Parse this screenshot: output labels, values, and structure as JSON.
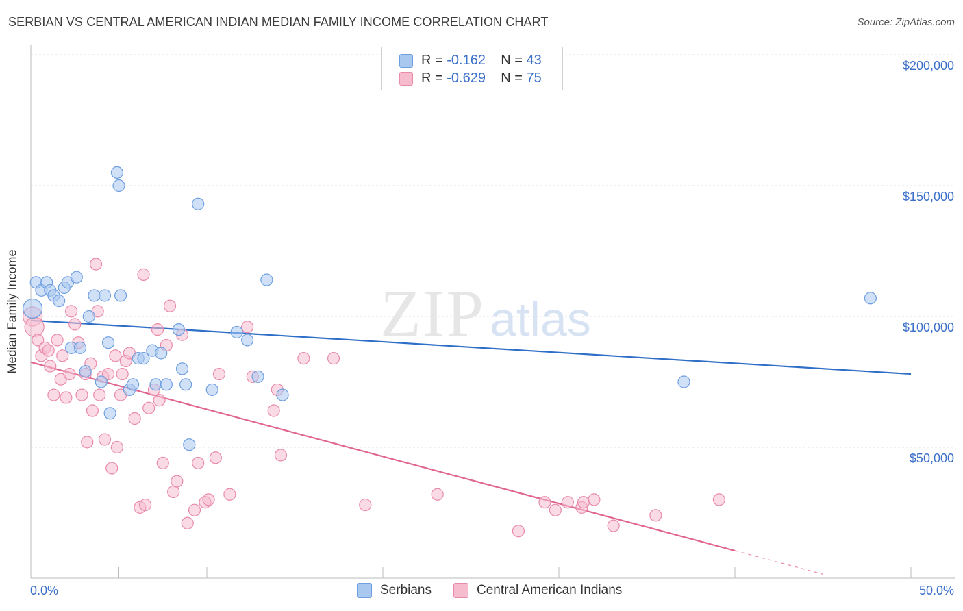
{
  "title": "SERBIAN VS CENTRAL AMERICAN INDIAN MEDIAN FAMILY INCOME CORRELATION CHART",
  "source": "Source: ZipAtlas.com",
  "watermark": {
    "zip": "ZIP",
    "atlas": "atlas"
  },
  "colors": {
    "blue_fill": "#a9c8f0",
    "blue_stroke": "#6f9fe0",
    "blue_line": "#2f6fc8",
    "pink_fill": "#f6bccd",
    "pink_stroke": "#e98aa8",
    "pink_line": "#e06690",
    "label_blue": "#3b6fc9"
  },
  "legend_top": {
    "rows": [
      {
        "r_label": "R =",
        "r_value": "-0.162",
        "n_label": "N =",
        "n_value": "43"
      },
      {
        "r_label": "R =",
        "r_value": "-0.629",
        "n_label": "N =",
        "n_value": "75"
      }
    ]
  },
  "legend_bottom": {
    "serbians": "Serbians",
    "central_american_indians": "Central American Indians"
  },
  "chart_data": {
    "type": "scatter",
    "title": "SERBIAN VS CENTRAL AMERICAN INDIAN MEDIAN FAMILY INCOME CORRELATION CHART",
    "ylabel": "Median Family Income",
    "xlabel": "",
    "xlim": [
      0,
      50
    ],
    "ylim": [
      0,
      200000
    ],
    "x_tick_labels": [
      "0.0%",
      "50.0%"
    ],
    "y_tick_labels": [
      "$50,000",
      "$100,000",
      "$150,000",
      "$200,000"
    ],
    "y_ticks": [
      50000,
      100000,
      150000,
      200000
    ],
    "grid": true,
    "series": [
      {
        "name": "Serbians",
        "color": "#6f9fe0",
        "trend": {
          "x": [
            0,
            50
          ],
          "y": [
            98500,
            78000
          ]
        },
        "points": [
          [
            0.1,
            103000
          ],
          [
            0.3,
            113000
          ],
          [
            0.6,
            110000
          ],
          [
            0.9,
            113000
          ],
          [
            1.1,
            110000
          ],
          [
            1.3,
            108000
          ],
          [
            1.6,
            106000
          ],
          [
            1.9,
            111000
          ],
          [
            2.1,
            113000
          ],
          [
            2.6,
            115000
          ],
          [
            2.3,
            88000
          ],
          [
            2.8,
            88000
          ],
          [
            3.1,
            79000
          ],
          [
            3.3,
            100000
          ],
          [
            3.6,
            108000
          ],
          [
            4.0,
            75000
          ],
          [
            4.2,
            108000
          ],
          [
            4.4,
            90000
          ],
          [
            4.5,
            63000
          ],
          [
            4.9,
            155000
          ],
          [
            5.0,
            150000
          ],
          [
            5.1,
            108000
          ],
          [
            5.6,
            72000
          ],
          [
            5.8,
            74000
          ],
          [
            6.1,
            84000
          ],
          [
            6.4,
            84000
          ],
          [
            6.9,
            87000
          ],
          [
            7.1,
            74000
          ],
          [
            7.4,
            86000
          ],
          [
            7.7,
            74000
          ],
          [
            8.4,
            95000
          ],
          [
            8.6,
            80000
          ],
          [
            8.8,
            74000
          ],
          [
            9.0,
            51000
          ],
          [
            9.5,
            143000
          ],
          [
            10.3,
            72000
          ],
          [
            11.7,
            94000
          ],
          [
            12.3,
            91000
          ],
          [
            12.9,
            77000
          ],
          [
            13.4,
            114000
          ],
          [
            14.3,
            70000
          ],
          [
            47.7,
            107000
          ],
          [
            37.1,
            75000
          ]
        ]
      },
      {
        "name": "Central American Indians",
        "color": "#e98aa8",
        "trend": {
          "x": [
            0,
            40
          ],
          "y": [
            82500,
            10500
          ]
        },
        "trend_dashed": {
          "x": [
            40,
            45
          ],
          "y": [
            10500,
            1500
          ]
        },
        "points": [
          [
            0.1,
            100000
          ],
          [
            0.2,
            96000
          ],
          [
            0.4,
            91000
          ],
          [
            0.6,
            85000
          ],
          [
            0.8,
            88000
          ],
          [
            1.0,
            87000
          ],
          [
            1.1,
            81000
          ],
          [
            1.3,
            70000
          ],
          [
            1.5,
            91000
          ],
          [
            1.7,
            76000
          ],
          [
            1.8,
            85000
          ],
          [
            2.0,
            69000
          ],
          [
            2.2,
            78000
          ],
          [
            2.3,
            102000
          ],
          [
            2.5,
            97000
          ],
          [
            2.7,
            90000
          ],
          [
            2.9,
            70000
          ],
          [
            3.1,
            78000
          ],
          [
            3.2,
            52000
          ],
          [
            3.4,
            82000
          ],
          [
            3.5,
            64000
          ],
          [
            3.7,
            120000
          ],
          [
            3.8,
            102000
          ],
          [
            3.9,
            70000
          ],
          [
            4.1,
            77000
          ],
          [
            4.2,
            53000
          ],
          [
            4.4,
            78000
          ],
          [
            4.6,
            42000
          ],
          [
            4.8,
            85000
          ],
          [
            4.9,
            50000
          ],
          [
            5.1,
            70000
          ],
          [
            5.2,
            78000
          ],
          [
            5.4,
            83000
          ],
          [
            5.6,
            86000
          ],
          [
            5.9,
            61000
          ],
          [
            6.2,
            27000
          ],
          [
            6.4,
            116000
          ],
          [
            6.5,
            28000
          ],
          [
            6.7,
            65000
          ],
          [
            7.0,
            72000
          ],
          [
            7.2,
            95000
          ],
          [
            7.3,
            68000
          ],
          [
            7.5,
            44000
          ],
          [
            7.7,
            89000
          ],
          [
            7.9,
            104000
          ],
          [
            8.1,
            33000
          ],
          [
            8.3,
            37000
          ],
          [
            8.6,
            93000
          ],
          [
            8.9,
            21000
          ],
          [
            9.3,
            26000
          ],
          [
            9.5,
            44000
          ],
          [
            9.9,
            29000
          ],
          [
            10.1,
            30000
          ],
          [
            10.5,
            46000
          ],
          [
            10.7,
            78000
          ],
          [
            11.3,
            32000
          ],
          [
            12.3,
            96000
          ],
          [
            12.6,
            77000
          ],
          [
            13.8,
            64000
          ],
          [
            14.0,
            72000
          ],
          [
            14.2,
            47000
          ],
          [
            15.5,
            84000
          ],
          [
            17.2,
            84000
          ],
          [
            19.0,
            28000
          ],
          [
            23.1,
            32000
          ],
          [
            27.7,
            18000
          ],
          [
            29.2,
            29000
          ],
          [
            29.8,
            26000
          ],
          [
            30.5,
            29000
          ],
          [
            31.3,
            27000
          ],
          [
            31.4,
            29000
          ],
          [
            32.0,
            30000
          ],
          [
            33.1,
            20000
          ],
          [
            35.5,
            24000
          ],
          [
            39.1,
            30000
          ]
        ]
      }
    ]
  }
}
